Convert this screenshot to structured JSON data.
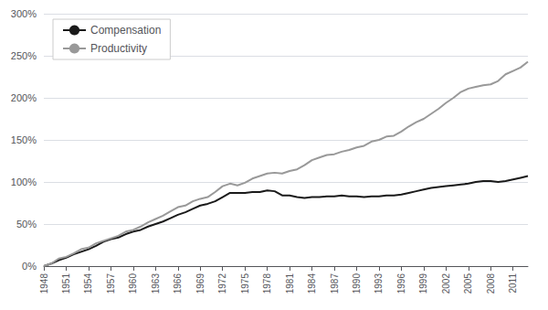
{
  "chart_data": {
    "type": "line",
    "x": [
      1948,
      1949,
      1950,
      1951,
      1952,
      1953,
      1954,
      1955,
      1956,
      1957,
      1958,
      1959,
      1960,
      1961,
      1962,
      1963,
      1964,
      1965,
      1966,
      1967,
      1968,
      1969,
      1970,
      1971,
      1972,
      1973,
      1974,
      1975,
      1976,
      1977,
      1978,
      1979,
      1980,
      1981,
      1982,
      1983,
      1984,
      1985,
      1986,
      1987,
      1988,
      1989,
      1990,
      1991,
      1992,
      1993,
      1994,
      1995,
      1996,
      1997,
      1998,
      1999,
      2000,
      2001,
      2002,
      2003,
      2004,
      2005,
      2006,
      2007,
      2008,
      2009,
      2010,
      2011,
      2012,
      2013
    ],
    "series": [
      {
        "name": "Compensation",
        "color": "#1a1a1a",
        "values": [
          0,
          3,
          7,
          10,
          14,
          17,
          20,
          24,
          29,
          32,
          34,
          38,
          41,
          43,
          47,
          50,
          53,
          57,
          61,
          64,
          68,
          72,
          74,
          77,
          82,
          87,
          87,
          87,
          88,
          88,
          90,
          89,
          84,
          84,
          82,
          81,
          82,
          82,
          83,
          83,
          84,
          83,
          83,
          82,
          83,
          83,
          84,
          84,
          85,
          87,
          89,
          91,
          93,
          94,
          95,
          96,
          97,
          98,
          100,
          101,
          101,
          100,
          101,
          103,
          105,
          107
        ]
      },
      {
        "name": "Productivity",
        "color": "#999999",
        "values": [
          0,
          3,
          9,
          11,
          15,
          20,
          22,
          27,
          30,
          33,
          36,
          41,
          43,
          47,
          52,
          56,
          60,
          65,
          70,
          72,
          77,
          80,
          82,
          88,
          95,
          98,
          96,
          99,
          104,
          107,
          110,
          111,
          110,
          113,
          115,
          120,
          126,
          129,
          132,
          133,
          136,
          138,
          141,
          143,
          148,
          150,
          154,
          155,
          160,
          166,
          171,
          175,
          181,
          187,
          194,
          200,
          207,
          211,
          213,
          215,
          216,
          220,
          228,
          232,
          236,
          243
        ]
      }
    ],
    "xlim": [
      1948,
      2013
    ],
    "xticks": [
      1948,
      1951,
      1954,
      1957,
      1960,
      1963,
      1966,
      1969,
      1972,
      1975,
      1978,
      1981,
      1984,
      1987,
      1990,
      1993,
      1996,
      1999,
      2002,
      2005,
      2008,
      2011
    ],
    "ylim": [
      0,
      300
    ],
    "yticks": [
      {
        "value": 0,
        "label": "0%"
      },
      {
        "value": 50,
        "label": "50%"
      },
      {
        "value": 100,
        "label": "100%"
      },
      {
        "value": 150,
        "label": "150%"
      },
      {
        "value": 200,
        "label": "200%"
      },
      {
        "value": 250,
        "label": "250%"
      },
      {
        "value": 300,
        "label": "300%"
      }
    ],
    "grid": true,
    "legend": "upper left"
  }
}
